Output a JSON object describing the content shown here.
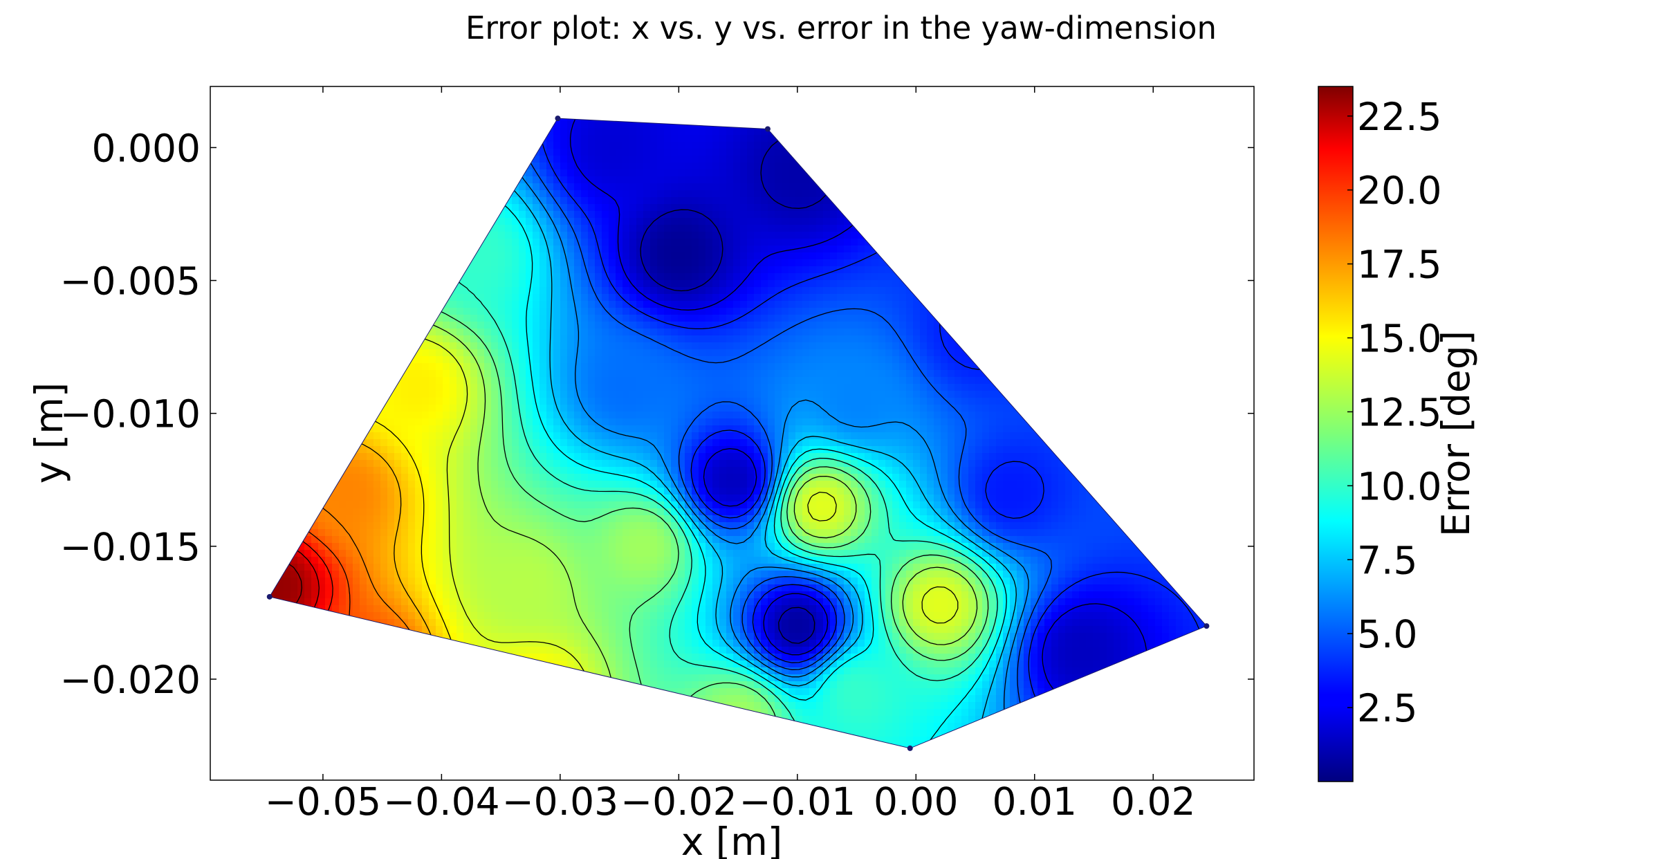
{
  "chart_data": {
    "type": "heatmap",
    "subtype": "filled-contour",
    "title": "Error plot: x vs. y vs. error in the yaw-dimension",
    "xlabel": "x [m]",
    "ylabel": "y [m]",
    "colorbar_label": "Error [deg]",
    "colormap": "jet",
    "xlim": [
      -0.0595,
      0.0285
    ],
    "ylim": [
      -0.0238,
      0.0023
    ],
    "xticks": [
      -0.05,
      -0.04,
      -0.03,
      -0.02,
      -0.01,
      0.0,
      0.01,
      0.02
    ],
    "xtick_labels": [
      "−0.05",
      "−0.04",
      "−0.03",
      "−0.02",
      "−0.01",
      "0.00",
      "0.01",
      "0.02"
    ],
    "yticks": [
      0.0,
      -0.005,
      -0.01,
      -0.015,
      -0.02
    ],
    "ytick_labels": [
      "0.000",
      "−0.005",
      "−0.010",
      "−0.015",
      "−0.020"
    ],
    "colorbar_range": [
      0.0,
      23.5
    ],
    "colorbar_ticks": [
      2.5,
      5.0,
      7.5,
      10.0,
      12.5,
      15.0,
      17.5,
      20.0,
      22.5
    ],
    "colorbar_tick_labels": [
      "2.5",
      "5.0",
      "7.5",
      "10.0",
      "12.5",
      "15.0",
      "17.5",
      "20.0",
      "22.5"
    ],
    "grid": false,
    "region_outline": [
      {
        "x": -0.0545,
        "y": -0.0169
      },
      {
        "x": -0.0302,
        "y": 0.0011
      },
      {
        "x": -0.0125,
        "y": 0.0007
      },
      {
        "x": 0.0245,
        "y": -0.018
      },
      {
        "x": -0.0005,
        "y": -0.0226
      }
    ],
    "error_peaks": [
      {
        "x": -0.054,
        "y": -0.0165,
        "error": 23.0
      },
      {
        "x": -0.046,
        "y": -0.0195,
        "error": 19.0
      },
      {
        "x": -0.048,
        "y": -0.013,
        "error": 17.5
      },
      {
        "x": -0.042,
        "y": -0.009,
        "error": 15.0
      },
      {
        "x": -0.037,
        "y": -0.004,
        "error": 10.0
      },
      {
        "x": -0.032,
        "y": -0.0205,
        "error": 15.0
      },
      {
        "x": -0.015,
        "y": -0.0215,
        "error": 12.5
      },
      {
        "x": -0.005,
        "y": -0.0205,
        "error": 10.0
      },
      {
        "x": -0.033,
        "y": -0.0165,
        "error": 13.0
      },
      {
        "x": -0.023,
        "y": -0.015,
        "error": 12.5
      },
      {
        "x": -0.008,
        "y": -0.0135,
        "error": 14.0
      },
      {
        "x": 0.002,
        "y": -0.0172,
        "error": 14.0
      },
      {
        "x": -0.005,
        "y": -0.0095,
        "error": 6.0
      },
      {
        "x": -0.0245,
        "y": -0.009,
        "error": 5.5
      },
      {
        "x": 0.008,
        "y": -0.013,
        "error": 3.5
      },
      {
        "x": -0.0255,
        "y": 0.0,
        "error": 2.0
      }
    ],
    "error_lows": [
      {
        "x": -0.02,
        "y": -0.004,
        "error": 0.5
      },
      {
        "x": -0.01,
        "y": -0.001,
        "error": 1.0
      },
      {
        "x": -0.01,
        "y": -0.018,
        "error": 0.8
      },
      {
        "x": -0.0155,
        "y": -0.0125,
        "error": 1.5
      },
      {
        "x": 0.014,
        "y": -0.019,
        "error": 1.5
      },
      {
        "x": 0.005,
        "y": -0.007,
        "error": 3.5
      }
    ]
  }
}
